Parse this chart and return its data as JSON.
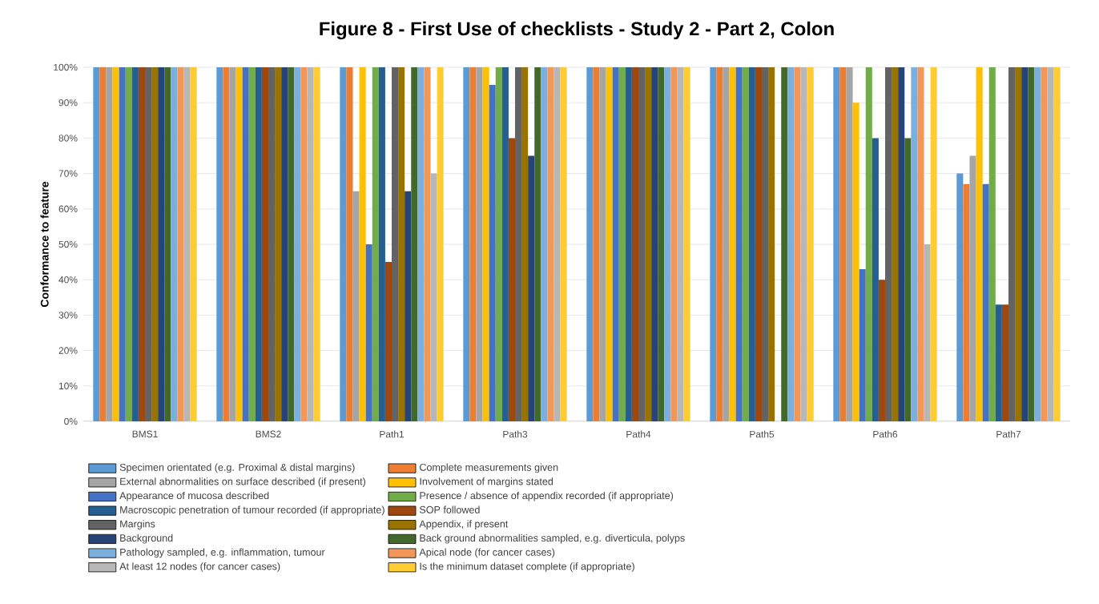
{
  "chart_data": {
    "type": "bar",
    "title": "Figure 8 - First Use of checklists - Study 2 - Part 2, Colon",
    "ylabel": "Conformance to feature",
    "categories": [
      "BMS1",
      "BMS2",
      "Path1",
      "Path3",
      "Path4",
      "Path5",
      "Path6",
      "Path7"
    ],
    "ylim": [
      0,
      100
    ],
    "yticks": [
      {
        "value": 0,
        "label": "0%"
      },
      {
        "value": 10,
        "label": "10%"
      },
      {
        "value": 20,
        "label": "20%"
      },
      {
        "value": 30,
        "label": "30%"
      },
      {
        "value": 40,
        "label": "40%"
      },
      {
        "value": 50,
        "label": "50%"
      },
      {
        "value": 60,
        "label": "60%"
      },
      {
        "value": 70,
        "label": "70%"
      },
      {
        "value": 80,
        "label": "80%"
      },
      {
        "value": 90,
        "label": "90%"
      },
      {
        "value": 100,
        "label": "100%"
      }
    ],
    "grid": "y",
    "legend": "bottom",
    "series": [
      {
        "name": "Specimen orientated (e.g. Proximal & distal margins)",
        "color": "#5b9bd5",
        "values": [
          100,
          100,
          100,
          100,
          100,
          100,
          100,
          70
        ]
      },
      {
        "name": "Complete measurements given",
        "color": "#ed7d31",
        "values": [
          100,
          100,
          100,
          100,
          100,
          100,
          100,
          67
        ]
      },
      {
        "name": "External abnormalities on surface described (if present)",
        "color": "#a5a5a5",
        "values": [
          100,
          100,
          65,
          100,
          100,
          100,
          100,
          75
        ]
      },
      {
        "name": "Involvement of margins stated",
        "color": "#ffc000",
        "values": [
          100,
          100,
          100,
          100,
          100,
          100,
          90,
          100
        ]
      },
      {
        "name": "Appearance of mucosa described",
        "color": "#4472c4",
        "values": [
          100,
          100,
          50,
          95,
          100,
          100,
          43,
          67
        ]
      },
      {
        "name": "Presence / absence of appendix recorded (if appropriate)",
        "color": "#70ad47",
        "values": [
          100,
          100,
          100,
          100,
          100,
          100,
          100,
          100
        ]
      },
      {
        "name": "Macroscopic penetration of tumour recorded (if appropriate)",
        "color": "#255e91",
        "values": [
          100,
          100,
          100,
          100,
          100,
          100,
          80,
          33
        ]
      },
      {
        "name": "SOP followed",
        "color": "#9e480e",
        "values": [
          100,
          100,
          45,
          80,
          100,
          100,
          40,
          33
        ]
      },
      {
        "name": "Margins",
        "color": "#636363",
        "values": [
          100,
          100,
          100,
          100,
          100,
          100,
          100,
          100
        ]
      },
      {
        "name": "Appendix, if present",
        "color": "#997300",
        "values": [
          100,
          100,
          100,
          100,
          100,
          100,
          100,
          100
        ]
      },
      {
        "name": "Background",
        "color": "#264478",
        "values": [
          100,
          100,
          65,
          75,
          100,
          0,
          100,
          100
        ]
      },
      {
        "name": "Back ground abnormalities sampled, e.g. diverticula, polyps",
        "color": "#43682b",
        "values": [
          100,
          100,
          100,
          100,
          100,
          100,
          80,
          100
        ]
      },
      {
        "name": "Pathology sampled, e.g. inflammation, tumour",
        "color": "#7cafdd",
        "values": [
          100,
          100,
          100,
          100,
          100,
          100,
          100,
          100
        ]
      },
      {
        "name": "Apical node (for cancer cases)",
        "color": "#f1975a",
        "values": [
          100,
          100,
          100,
          100,
          100,
          100,
          100,
          100
        ]
      },
      {
        "name": "At least 12 nodes (for cancer cases)",
        "color": "#b7b7b7",
        "values": [
          100,
          100,
          70,
          100,
          100,
          100,
          50,
          100
        ]
      },
      {
        "name": "Is the minimum dataset complete (if appropriate)",
        "color": "#ffcd33",
        "values": [
          100,
          100,
          100,
          100,
          100,
          100,
          100,
          100
        ]
      }
    ]
  }
}
